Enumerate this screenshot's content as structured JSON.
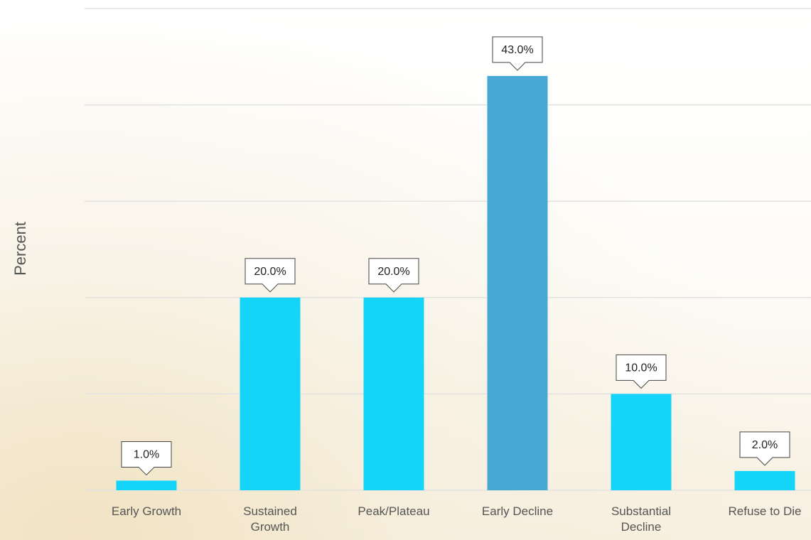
{
  "chart_data": {
    "type": "bar",
    "y_label": "Percent",
    "categories": [
      "Early Growth",
      "Sustained Growth",
      "Peak/Plateau",
      "Early Decline",
      "Substantial Decline",
      "Refuse to Die"
    ],
    "values": [
      1,
      20,
      20,
      43,
      10,
      2
    ],
    "value_labels": [
      "1.0%",
      "20.0%",
      "20.0%",
      "43.0%",
      "10.0%",
      "2.0%"
    ],
    "colors": [
      "#14d4fa",
      "#14d4fa",
      "#14d4fa",
      "#47a9d3",
      "#14d4fa",
      "#14d4fa"
    ],
    "ylim": [
      0,
      50
    ],
    "yticks": [
      0,
      10,
      20,
      30,
      40,
      50
    ],
    "grid": true
  }
}
